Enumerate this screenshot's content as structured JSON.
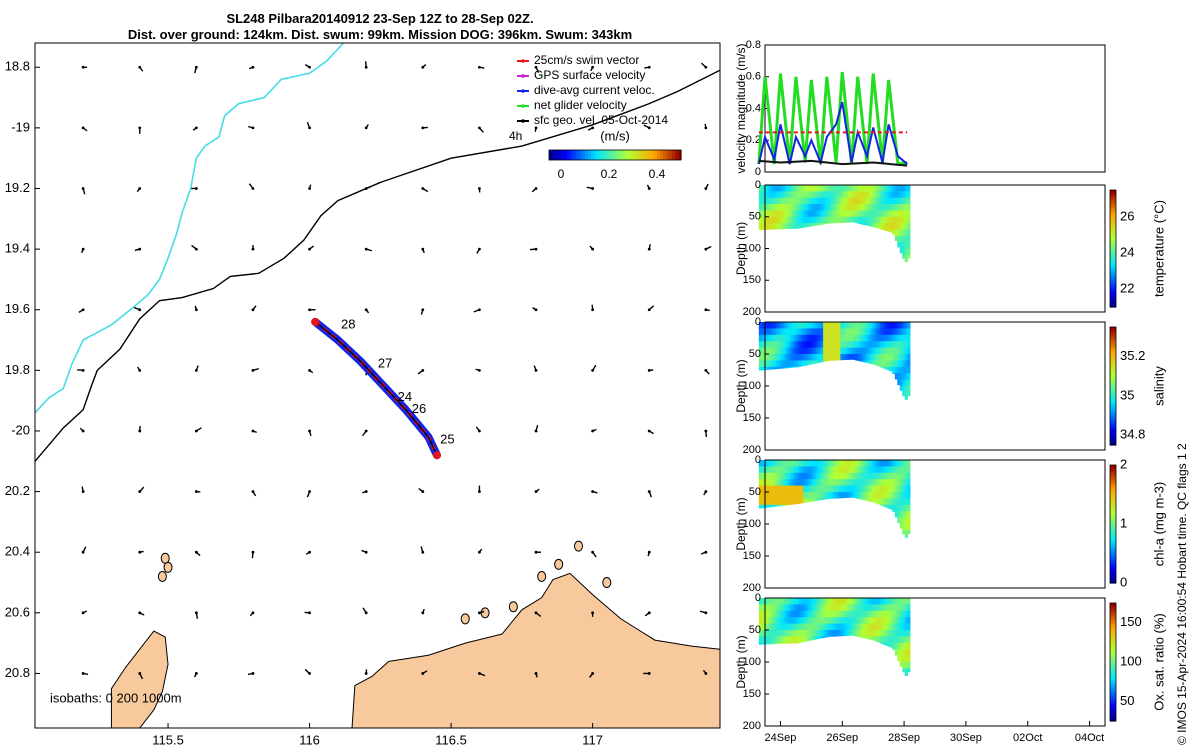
{
  "header": {
    "title_line1": "SL248 Pilbara20140912 23-Sep 12Z to 28-Sep 02Z.",
    "title_line2": "Dist. over ground: 124km. Dist. swum: 99km. Mission DOG: 396km. Swum: 343km"
  },
  "footer": {
    "credit": "© IMOS 15-Apr-2024 16:00:54 Hobart time. QC flags 1  2"
  },
  "colors": {
    "land": "#f8c99c",
    "coast_200m": "#000000",
    "isobath_1000m": "#44dde8",
    "swim_vector": "#e8141a",
    "gps_velocity": "#d020d0",
    "dive_current": "#1224e6",
    "net_velocity": "#22dd22",
    "sfc_geo_velocity": "#000000"
  },
  "chart_data": [
    {
      "id": "map",
      "type": "scatter",
      "xlabel": "",
      "ylabel": "",
      "xlim": [
        115.03,
        117.45
      ],
      "ylim": [
        -20.98,
        -18.72
      ],
      "x_ticks": [
        115.5,
        116,
        116.5,
        117
      ],
      "x_tick_labels": [
        "115.5",
        "116",
        "116.5",
        "117"
      ],
      "y_ticks": [
        -18.8,
        -19,
        -19.2,
        -19.4,
        -19.6,
        -19.8,
        -20,
        -20.2,
        -20.4,
        -20.6,
        -20.8
      ],
      "y_tick_labels": [
        "18.8",
        "-19",
        "19.2",
        "19.4",
        "19.6",
        "19.8",
        "-20",
        "20.2",
        "20.4",
        "20.6",
        "20.8"
      ],
      "legend": {
        "placement": "top-right",
        "entries": [
          {
            "label": "25cm/s swim vector",
            "color": "#e8141a"
          },
          {
            "label": "GPS surface velocity",
            "color": "#d020d0"
          },
          {
            "label": "dive-avg current veloc.",
            "color": "#1224e6"
          },
          {
            "label": "net glider velocity",
            "color": "#22dd22"
          },
          {
            "label": "sfc geo. vel. 05-Oct-2014",
            "color": "#000000"
          }
        ]
      },
      "time_label": "4h",
      "colorbar": {
        "label": "(m/s)",
        "ticks": [
          0,
          0.2,
          0.4
        ],
        "tick_labels": [
          "0",
          "0.2",
          "0.4"
        ],
        "range": [
          -0.05,
          0.5
        ]
      },
      "isobaths_label": "isobaths: 0   200  1000m",
      "track_day_labels": [
        {
          "text": "28",
          "lon": 116.09,
          "lat": -19.65
        },
        {
          "text": "27",
          "lon": 116.22,
          "lat": -19.78
        },
        {
          "text": "24",
          "lon": 116.29,
          "lat": -19.89
        },
        {
          "text": "26",
          "lon": 116.34,
          "lat": -19.93
        },
        {
          "text": "25",
          "lon": 116.44,
          "lat": -20.03
        }
      ],
      "glider_track": [
        [
          116.02,
          -19.64
        ],
        [
          116.1,
          -19.7
        ],
        [
          116.18,
          -19.77
        ],
        [
          116.26,
          -19.85
        ],
        [
          116.34,
          -19.93
        ],
        [
          116.42,
          -20.02
        ],
        [
          116.45,
          -20.08
        ]
      ],
      "isobath_200m": [
        [
          115.03,
          -20.1
        ],
        [
          115.13,
          -19.99
        ],
        [
          115.2,
          -19.93
        ],
        [
          115.23,
          -19.85
        ],
        [
          115.25,
          -19.8
        ],
        [
          115.33,
          -19.73
        ],
        [
          115.4,
          -19.63
        ],
        [
          115.47,
          -19.57
        ],
        [
          115.55,
          -19.56
        ],
        [
          115.66,
          -19.53
        ],
        [
          115.72,
          -19.49
        ],
        [
          115.82,
          -19.48
        ],
        [
          115.91,
          -19.43
        ],
        [
          115.98,
          -19.37
        ],
        [
          116.04,
          -19.29
        ],
        [
          116.1,
          -19.24
        ],
        [
          116.25,
          -19.18
        ],
        [
          116.5,
          -19.1
        ],
        [
          116.75,
          -19.06
        ],
        [
          117.0,
          -18.99
        ],
        [
          117.2,
          -18.92
        ],
        [
          117.3,
          -18.88
        ],
        [
          117.45,
          -18.81
        ]
      ],
      "isobath_1000m": [
        [
          115.03,
          -19.94
        ],
        [
          115.08,
          -19.89
        ],
        [
          115.13,
          -19.86
        ],
        [
          115.16,
          -19.78
        ],
        [
          115.2,
          -19.7
        ],
        [
          115.3,
          -19.65
        ],
        [
          115.38,
          -19.59
        ],
        [
          115.43,
          -19.55
        ],
        [
          115.47,
          -19.5
        ],
        [
          115.5,
          -19.43
        ],
        [
          115.53,
          -19.35
        ],
        [
          115.55,
          -19.28
        ],
        [
          115.58,
          -19.2
        ],
        [
          115.6,
          -19.1
        ],
        [
          115.63,
          -19.06
        ],
        [
          115.68,
          -19.03
        ],
        [
          115.7,
          -18.96
        ],
        [
          115.75,
          -18.92
        ],
        [
          115.84,
          -18.9
        ],
        [
          115.9,
          -18.84
        ],
        [
          116.0,
          -18.82
        ],
        [
          116.06,
          -18.78
        ],
        [
          116.12,
          -18.72
        ]
      ],
      "grid_columns": [
        115.2,
        115.4,
        115.6,
        115.8,
        116.0,
        116.2,
        116.4,
        116.6,
        116.8,
        117.0,
        117.2,
        117.4
      ],
      "grid_rows": [
        -18.8,
        -19,
        -19.2,
        -19.4,
        -19.6,
        -19.8,
        -20,
        -20.2,
        -20.4,
        -20.6,
        -20.8
      ],
      "land": [
        {
          "name": "mainland-coast",
          "points": [
            [
              116.15,
              -20.98
            ],
            [
              116.16,
              -20.84
            ],
            [
              116.22,
              -20.81
            ],
            [
              116.28,
              -20.76
            ],
            [
              116.42,
              -20.74
            ],
            [
              116.55,
              -20.7
            ],
            [
              116.68,
              -20.67
            ],
            [
              116.75,
              -20.59
            ],
            [
              116.82,
              -20.55
            ],
            [
              116.86,
              -20.49
            ],
            [
              116.92,
              -20.47
            ],
            [
              117.0,
              -20.54
            ],
            [
              117.1,
              -20.62
            ],
            [
              117.22,
              -20.69
            ],
            [
              117.35,
              -20.71
            ],
            [
              117.45,
              -20.72
            ],
            [
              117.45,
              -20.98
            ]
          ]
        },
        {
          "name": "island-west",
          "points": [
            [
              115.3,
              -20.98
            ],
            [
              115.3,
              -20.85
            ],
            [
              115.35,
              -20.78
            ],
            [
              115.4,
              -20.72
            ],
            [
              115.45,
              -20.66
            ],
            [
              115.49,
              -20.68
            ],
            [
              115.5,
              -20.77
            ],
            [
              115.48,
              -20.86
            ],
            [
              115.45,
              -20.92
            ],
            [
              115.4,
              -20.98
            ]
          ]
        }
      ]
    },
    {
      "id": "velocity-magnitude",
      "type": "line",
      "ylabel": "velocity magnitude (m/s)",
      "ylim": [
        0,
        0.8
      ],
      "y_ticks": [
        0,
        0.2,
        0.4,
        0.6,
        0.8
      ],
      "y_tick_labels": [
        "0",
        "0.2",
        "0.4",
        "0.6",
        "0.8"
      ],
      "time_range_days": [
        23.3,
        28.1
      ],
      "series": [
        {
          "color": "#22dd22",
          "x": [
            23.3,
            23.5,
            23.8,
            24.0,
            24.3,
            24.5,
            24.8,
            25.0,
            25.3,
            25.5,
            25.8,
            26.0,
            26.3,
            26.5,
            26.8,
            27.0,
            27.3,
            27.5,
            27.8,
            28.1
          ],
          "values": [
            0.05,
            0.6,
            0.05,
            0.62,
            0.05,
            0.6,
            0.06,
            0.58,
            0.05,
            0.6,
            0.06,
            0.63,
            0.05,
            0.6,
            0.05,
            0.62,
            0.06,
            0.58,
            0.05,
            0.06
          ]
        },
        {
          "color": "#1224e6",
          "x": [
            23.3,
            23.5,
            23.8,
            24.0,
            24.3,
            24.5,
            24.8,
            25.0,
            25.3,
            25.5,
            25.8,
            26.0,
            26.3,
            26.5,
            26.8,
            27.0,
            27.3,
            27.5,
            27.8,
            28.1
          ],
          "values": [
            0.05,
            0.22,
            0.08,
            0.3,
            0.05,
            0.22,
            0.1,
            0.2,
            0.06,
            0.22,
            0.3,
            0.44,
            0.06,
            0.25,
            0.1,
            0.28,
            0.06,
            0.3,
            0.1,
            0.05
          ]
        },
        {
          "color": "#e8141a",
          "x": [
            23.3,
            28.1
          ],
          "values": [
            0.25,
            0.25
          ]
        },
        {
          "color": "#111111",
          "x": [
            23.3,
            24.0,
            25.0,
            26.0,
            27.0,
            28.1
          ],
          "values": [
            0.07,
            0.06,
            0.07,
            0.05,
            0.06,
            0.04
          ]
        }
      ]
    },
    {
      "id": "temperature-section",
      "type": "heatmap",
      "ylabel": "Depth (m)",
      "ylim": [
        200,
        0
      ],
      "y_ticks": [
        0,
        50,
        100,
        150,
        200
      ],
      "y_tick_labels": [
        "0",
        "50",
        "100",
        "150",
        "200"
      ],
      "colorbar_label": "temperature (°C)",
      "colorbar_ticks": [
        22,
        24,
        26
      ],
      "colorbar_tick_labels": [
        "22",
        "24",
        "26"
      ],
      "colorbar_range": [
        21,
        27.5
      ],
      "time_range_days": [
        23.3,
        28.1
      ],
      "max_depth_profile": [
        [
          23.3,
          70
        ],
        [
          24.5,
          68
        ],
        [
          25.5,
          60
        ],
        [
          26.3,
          58
        ],
        [
          27.0,
          66
        ],
        [
          27.6,
          75
        ],
        [
          27.8,
          100
        ],
        [
          28.0,
          122
        ],
        [
          28.1,
          115
        ]
      ],
      "typical_value": 24.2
    },
    {
      "id": "salinity-section",
      "type": "heatmap",
      "ylabel": "Depth (m)",
      "ylim": [
        200,
        0
      ],
      "y_ticks": [
        0,
        50,
        100,
        150,
        200
      ],
      "y_tick_labels": [
        "0",
        "50",
        "100",
        "150",
        "200"
      ],
      "colorbar_label": "salinity",
      "colorbar_ticks": [
        34.8,
        35,
        35.2
      ],
      "colorbar_tick_labels": [
        "34.8",
        "35",
        "35.2"
      ],
      "colorbar_range": [
        34.75,
        35.35
      ],
      "time_range_days": [
        23.3,
        28.1
      ],
      "max_depth_profile": [
        [
          23.3,
          75
        ],
        [
          24.5,
          70
        ],
        [
          25.5,
          60
        ],
        [
          26.3,
          58
        ],
        [
          27.0,
          66
        ],
        [
          27.6,
          78
        ],
        [
          27.8,
          100
        ],
        [
          28.0,
          122
        ],
        [
          28.1,
          115
        ]
      ],
      "typical_value": 34.95
    },
    {
      "id": "chla-section",
      "type": "heatmap",
      "ylabel": "Depth (m)",
      "ylim": [
        200,
        0
      ],
      "y_ticks": [
        0,
        50,
        100,
        150,
        200
      ],
      "y_tick_labels": [
        "0",
        "50",
        "100",
        "150",
        "200"
      ],
      "colorbar_label": "chl-a (mg m-3)",
      "colorbar_ticks": [
        0,
        1,
        2
      ],
      "colorbar_tick_labels": [
        "0",
        "1",
        "2"
      ],
      "colorbar_range": [
        0,
        2
      ],
      "time_range_days": [
        23.3,
        28.1
      ],
      "max_depth_profile": [
        [
          23.3,
          75
        ],
        [
          24.5,
          68
        ],
        [
          25.5,
          60
        ],
        [
          26.3,
          58
        ],
        [
          27.0,
          66
        ],
        [
          27.6,
          78
        ],
        [
          27.8,
          100
        ],
        [
          28.0,
          122
        ],
        [
          28.1,
          115
        ]
      ],
      "typical_value": 0.9
    },
    {
      "id": "oxygen-section",
      "type": "heatmap",
      "ylabel": "Depth (m)",
      "ylim": [
        200,
        0
      ],
      "y_ticks": [
        0,
        50,
        100,
        150,
        200
      ],
      "y_tick_labels": [
        "0",
        "50",
        "100",
        "150",
        "200"
      ],
      "colorbar_label": "Ox. sat. ratio (%)",
      "colorbar_ticks": [
        50,
        100,
        150
      ],
      "colorbar_tick_labels": [
        "50",
        "100",
        "150"
      ],
      "colorbar_range": [
        25,
        175
      ],
      "time_range_days": [
        23.3,
        28.1
      ],
      "max_depth_profile": [
        [
          23.3,
          72
        ],
        [
          24.5,
          70
        ],
        [
          25.5,
          60
        ],
        [
          26.3,
          58
        ],
        [
          27.0,
          66
        ],
        [
          27.6,
          78
        ],
        [
          27.8,
          100
        ],
        [
          28.0,
          122
        ],
        [
          28.1,
          115
        ]
      ],
      "typical_value": 95,
      "x_ticks": [
        24,
        26,
        28,
        30,
        32,
        34
      ],
      "x_tick_labels": [
        "24Sep",
        "26Sep",
        "28Sep",
        "30Sep",
        "02Oct",
        "04Oct"
      ]
    }
  ]
}
